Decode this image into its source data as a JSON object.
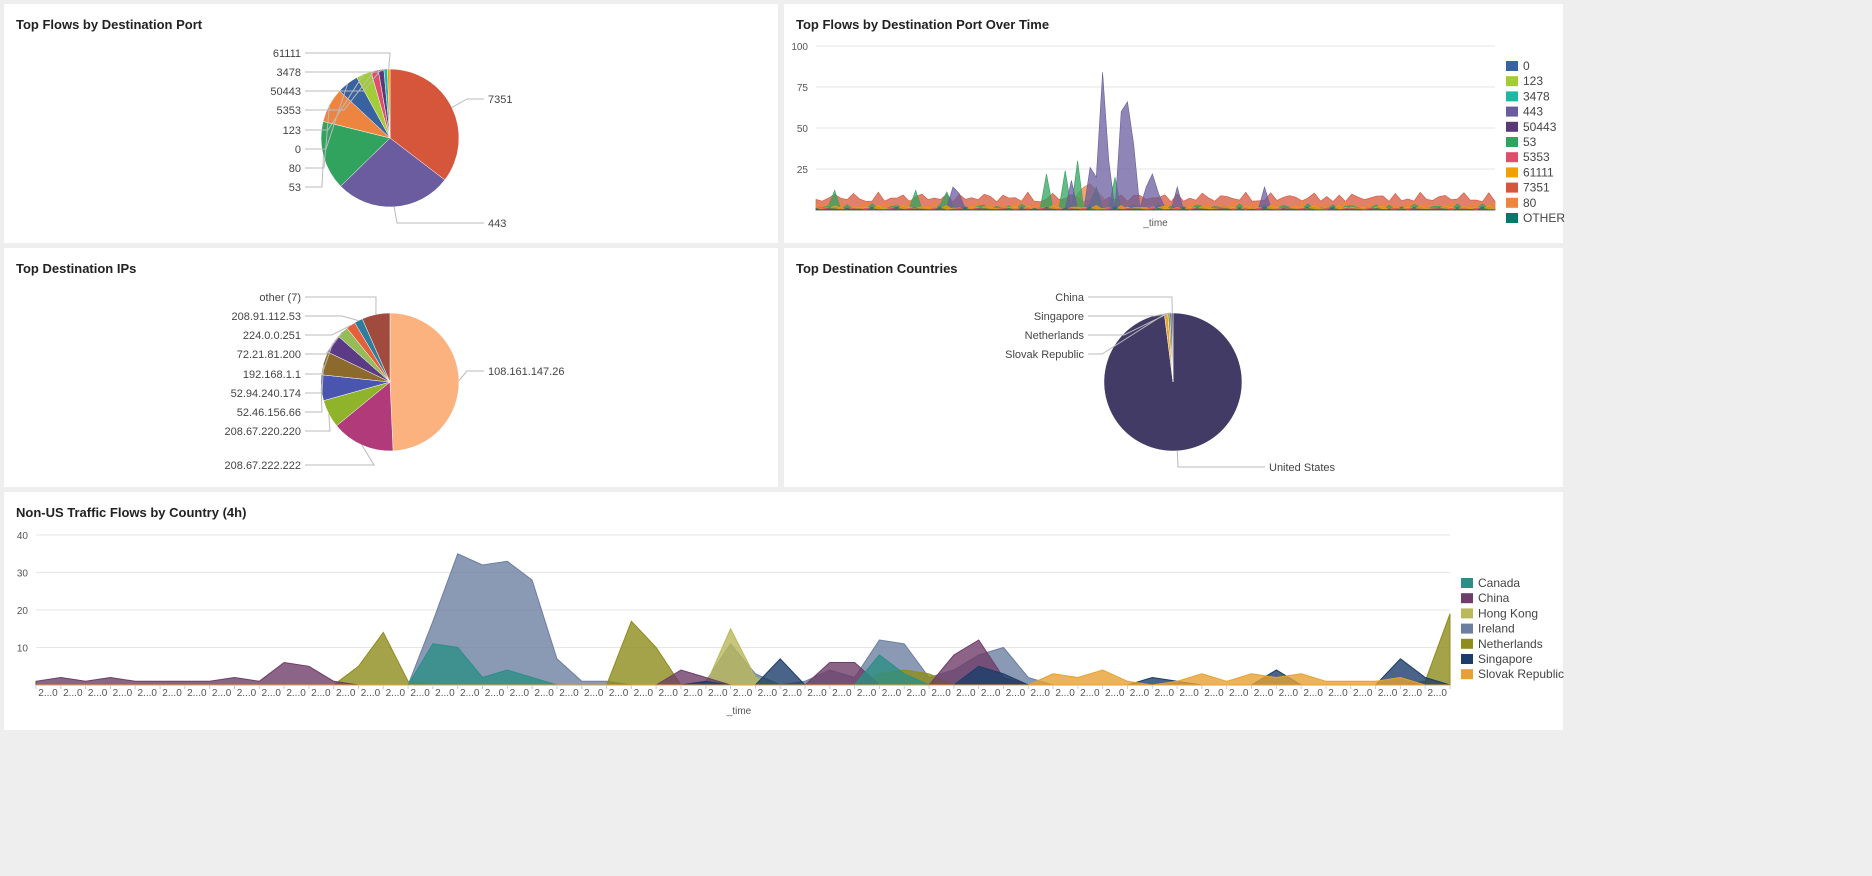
{
  "panels": {
    "p1": {
      "title": "Top Flows by Destination Port"
    },
    "p2": {
      "title": "Top Flows by Destination Port Over Time"
    },
    "p3": {
      "title": "Top Destination IPs"
    },
    "p4": {
      "title": "Top Destination Countries"
    },
    "p5": {
      "title": "Non-US Traffic Flows by Country (4h)"
    }
  },
  "chart_data": [
    {
      "id": "ports-pie",
      "type": "pie",
      "title": "Top Flows by Destination Port",
      "labels": [
        "7351",
        "443",
        "53",
        "80",
        "0",
        "123",
        "5353",
        "50443",
        "3478",
        "61111"
      ],
      "values": [
        35.0,
        27.0,
        16.0,
        8.0,
        5.0,
        3.5,
        1.7,
        1.3,
        0.8,
        0.6
      ],
      "colors": [
        "#d6563c",
        "#6a5c9e",
        "#31a35f",
        "#ed8440",
        "#3863a0",
        "#a2cc39",
        "#dc4e6b",
        "#5a3a76",
        "#1db8a3",
        "#f0a000"
      ]
    },
    {
      "id": "ports-area",
      "type": "area",
      "title": "Top Flows by Destination Port Over Time",
      "xlabel": "_time",
      "ylabel": "",
      "ylim": [
        0,
        100
      ],
      "yticks": [
        25,
        50,
        75,
        100
      ],
      "series": [
        {
          "name": "0",
          "color": "#3863a0"
        },
        {
          "name": "123",
          "color": "#a2cc39"
        },
        {
          "name": "3478",
          "color": "#1db8a3"
        },
        {
          "name": "443",
          "color": "#6a5c9e"
        },
        {
          "name": "50443",
          "color": "#5a3a76"
        },
        {
          "name": "53",
          "color": "#31a35f"
        },
        {
          "name": "5353",
          "color": "#dc4e6b"
        },
        {
          "name": "61111",
          "color": "#f0a000"
        },
        {
          "name": "7351",
          "color": "#d6563c"
        },
        {
          "name": "80",
          "color": "#ed8440"
        },
        {
          "name": "OTHER",
          "color": "#00796b"
        }
      ]
    },
    {
      "id": "ips-pie",
      "type": "pie",
      "title": "Top Destination IPs",
      "labels": [
        "108.161.147.26",
        "208.67.222.222",
        "208.67.220.220",
        "52.46.156.66",
        "52.94.240.174",
        "192.168.1.1",
        "72.21.81.200",
        "224.0.0.251",
        "208.91.112.53",
        "other (7)"
      ],
      "values": [
        45.0,
        13.5,
        6.0,
        5.5,
        5.0,
        4.0,
        2.5,
        2.0,
        1.8,
        6.0
      ],
      "colors": [
        "#fcb27e",
        "#b03a7a",
        "#8fb42b",
        "#4a55b0",
        "#8b6a2c",
        "#5b3a86",
        "#96bc5a",
        "#e4603b",
        "#2f7d9c",
        "#a14a3e"
      ]
    },
    {
      "id": "countries-pie",
      "type": "pie",
      "title": "Top Destination Countries",
      "labels": [
        "United States",
        "Slovak Republic",
        "Netherlands",
        "Singapore",
        "China"
      ],
      "values": [
        98.0,
        0.8,
        0.5,
        0.4,
        0.3
      ],
      "colors": [
        "#413b66",
        "#e7a032",
        "#9a9a2a",
        "#1b3d6a",
        "#6a3b5e"
      ]
    },
    {
      "id": "countries-area",
      "type": "area",
      "title": "Non-US Traffic Flows by Country (4h)",
      "xlabel": "_time",
      "ylim": [
        0,
        40
      ],
      "yticks": [
        10,
        20,
        30,
        40
      ],
      "xtick_label": "2...0",
      "xtick_count": 58,
      "series": [
        {
          "name": "Canada",
          "color": "#2a8f86",
          "values": [
            0,
            0,
            0,
            0,
            0,
            0,
            0,
            0,
            0,
            0,
            0,
            0,
            0,
            0,
            0,
            0,
            11,
            10,
            2,
            4,
            2,
            0,
            0,
            0,
            0,
            0,
            0,
            0,
            0,
            0,
            0,
            0,
            0,
            0,
            8,
            3,
            0,
            0,
            0,
            0,
            0,
            0,
            0,
            0,
            0,
            0,
            0,
            0,
            0,
            0,
            0,
            0,
            0,
            0,
            0,
            0,
            0,
            0
          ]
        },
        {
          "name": "China",
          "color": "#6e3d69",
          "values": [
            1,
            2,
            1,
            2,
            1,
            1,
            1,
            1,
            2,
            1,
            6,
            5,
            1,
            0,
            0,
            0,
            0,
            0,
            0,
            0,
            0,
            0,
            0,
            0,
            0,
            0,
            4,
            2,
            0,
            0,
            0,
            0,
            6,
            6,
            0,
            0,
            0,
            8,
            12,
            2,
            0,
            0,
            0,
            0,
            0,
            0,
            0,
            0,
            0,
            0,
            0,
            0,
            0,
            0,
            0,
            0,
            0,
            0
          ]
        },
        {
          "name": "Hong Kong",
          "color": "#b9b85a",
          "values": [
            0,
            0,
            0,
            0,
            0,
            0,
            0,
            0,
            0,
            0,
            0,
            0,
            0,
            0,
            0,
            0,
            0,
            0,
            0,
            0,
            0,
            0,
            0,
            0,
            0,
            0,
            0,
            0,
            15,
            2,
            0,
            0,
            0,
            0,
            0,
            0,
            0,
            0,
            0,
            0,
            0,
            0,
            0,
            0,
            0,
            0,
            0,
            0,
            0,
            0,
            0,
            0,
            0,
            0,
            0,
            0,
            0,
            0
          ]
        },
        {
          "name": "Ireland",
          "color": "#6d7fa1",
          "values": [
            0,
            0,
            0,
            0,
            0,
            0,
            0,
            0,
            0,
            0,
            0,
            0,
            0,
            0,
            0,
            0,
            17,
            35,
            32,
            33,
            28,
            7,
            1,
            1,
            0,
            0,
            0,
            1,
            11,
            3,
            0,
            1,
            4,
            2,
            12,
            11,
            2,
            4,
            8,
            10,
            2,
            0,
            0,
            0,
            0,
            0,
            0,
            0,
            0,
            0,
            0,
            0,
            0,
            0,
            0,
            0,
            0,
            0
          ]
        },
        {
          "name": "Netherlands",
          "color": "#8f8c1c",
          "values": [
            0,
            0,
            0,
            0,
            0,
            0,
            0,
            0,
            0,
            0,
            0,
            0,
            0,
            5,
            14,
            1,
            0,
            0,
            0,
            0,
            0,
            0,
            0,
            0,
            17,
            10,
            0,
            0,
            0,
            0,
            0,
            0,
            0,
            0,
            3,
            4,
            3,
            0,
            0,
            0,
            0,
            0,
            0,
            0,
            0,
            0,
            0,
            0,
            0,
            0,
            0,
            0,
            0,
            0,
            0,
            0,
            1,
            19
          ]
        },
        {
          "name": "Singapore",
          "color": "#1b3d6a",
          "values": [
            0,
            0,
            0,
            0,
            0,
            0,
            0,
            0,
            0,
            0,
            0,
            0,
            0,
            0,
            0,
            0,
            0,
            0,
            0,
            0,
            0,
            0,
            0,
            0,
            0,
            0,
            0,
            1,
            0,
            0,
            7,
            0,
            0,
            0,
            0,
            0,
            0,
            0,
            5,
            3,
            0,
            0,
            0,
            0,
            0,
            2,
            1,
            0,
            0,
            0,
            4,
            0,
            0,
            0,
            0,
            7,
            2,
            0
          ]
        },
        {
          "name": "Slovak Republic",
          "color": "#e7a032",
          "values": [
            0,
            0,
            0,
            0,
            0,
            0,
            0,
            0,
            0,
            0,
            0,
            0,
            0,
            0,
            0,
            0,
            0,
            0,
            0,
            0,
            0,
            0,
            0,
            0,
            0,
            0,
            0,
            0,
            0,
            0,
            0,
            0,
            0,
            0,
            0,
            0,
            0,
            0,
            0,
            0,
            0,
            3,
            2,
            4,
            1,
            0,
            1,
            3,
            1,
            3,
            2,
            3,
            1,
            1,
            1,
            2,
            0,
            0
          ]
        }
      ]
    }
  ]
}
